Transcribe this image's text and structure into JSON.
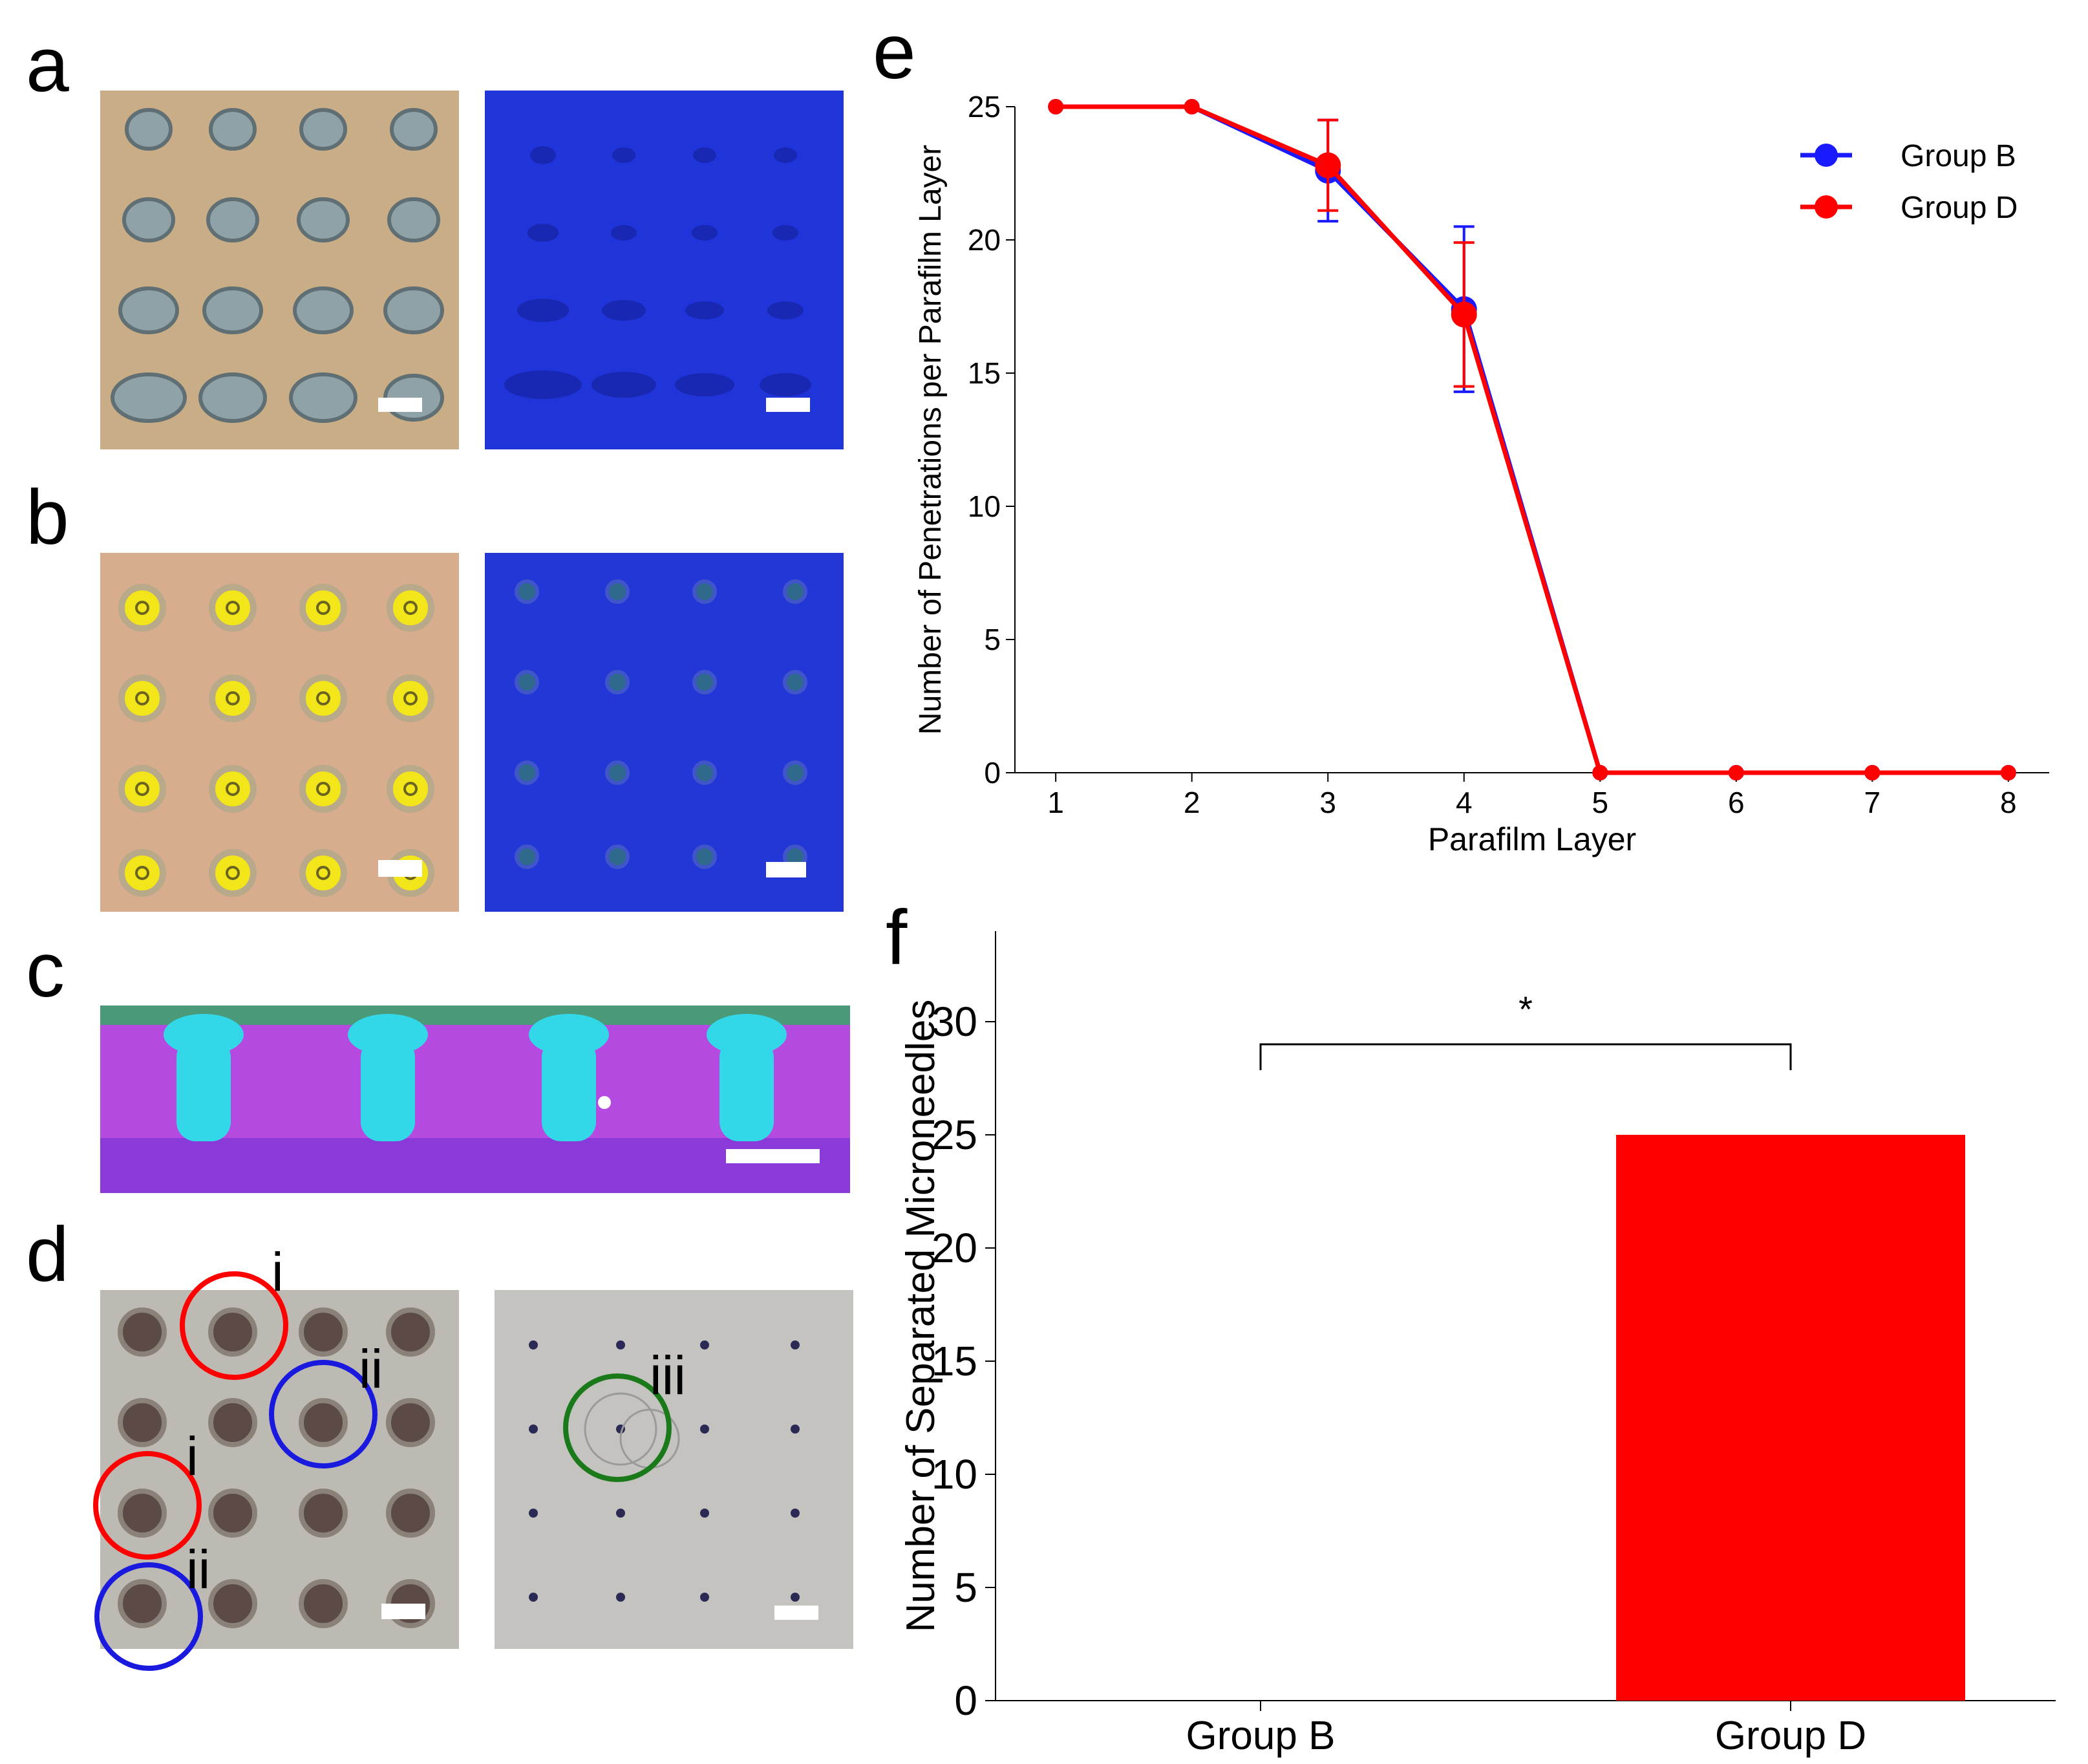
{
  "panel_labels": {
    "a": "a",
    "b": "b",
    "c": "c",
    "d": "d",
    "e": "e",
    "f": "f"
  },
  "annotations": {
    "i_top": "i",
    "ii_top": "ii",
    "i_left": "i",
    "ii_left": "ii",
    "iii": "iii"
  },
  "colors": {
    "group_b": "#1a1aff",
    "group_d": "#ff0000",
    "bar_d": "#ff0000",
    "circle_red": "#ff0000",
    "circle_blue": "#1a1adf",
    "circle_green": "#1a7a1a"
  },
  "chart_data": [
    {
      "type": "line",
      "panel": "e",
      "xlabel": "Parafilm Layer",
      "ylabel": "Number of Penetrations per Parafilm Layer",
      "xlim": [
        0.7,
        8.3
      ],
      "ylim": [
        0,
        25
      ],
      "x_ticks": [
        1,
        2,
        3,
        4,
        5,
        6,
        7,
        8
      ],
      "y_ticks": [
        0,
        5,
        10,
        15,
        20,
        25
      ],
      "legend_position": "top-right",
      "series": [
        {
          "name": "Group B",
          "x": [
            1,
            2,
            3,
            4,
            5,
            6,
            7,
            8
          ],
          "values": [
            25,
            25,
            22.6,
            17.4,
            0,
            0,
            0,
            0
          ],
          "error": [
            0,
            0,
            1.9,
            3.1,
            0,
            0,
            0,
            0
          ]
        },
        {
          "name": "Group D",
          "x": [
            1,
            2,
            3,
            4,
            5,
            6,
            7,
            8
          ],
          "values": [
            25,
            25,
            22.8,
            17.2,
            0,
            0,
            0,
            0
          ],
          "error": [
            0,
            0,
            1.7,
            2.7,
            0,
            0,
            0,
            0
          ]
        }
      ]
    },
    {
      "type": "bar",
      "panel": "f",
      "xlabel": "",
      "ylabel": "Number of Separated Microneedles",
      "categories": [
        "Group B",
        "Group D"
      ],
      "values": [
        0,
        25
      ],
      "ylim": [
        0,
        34
      ],
      "y_ticks": [
        0,
        5,
        10,
        15,
        20,
        25,
        30
      ],
      "significance": {
        "label": "*",
        "between": [
          "Group B",
          "Group D"
        ],
        "level": 29
      }
    }
  ]
}
